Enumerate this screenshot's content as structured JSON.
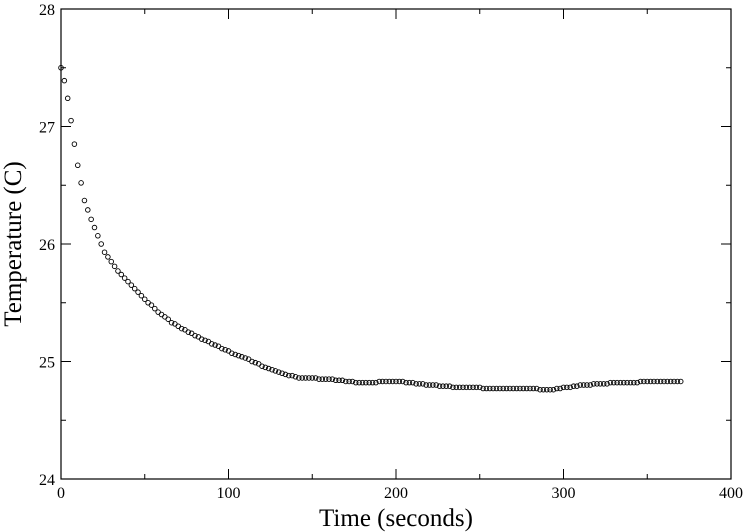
{
  "chart_data": {
    "type": "scatter",
    "x_label": "Time (seconds)",
    "y_label": "Temperature (C)",
    "xlim": [
      0,
      400
    ],
    "xticks": [
      0,
      100,
      200,
      300,
      400
    ],
    "ylim": [
      24,
      28
    ],
    "yticks": [
      24,
      25,
      26,
      27,
      28
    ],
    "marker_color": "#000000",
    "x": [
      0,
      2,
      4,
      6,
      8,
      10,
      12,
      14,
      16,
      18,
      20,
      22,
      24,
      26,
      28,
      30,
      32,
      34,
      36,
      38,
      40,
      42,
      44,
      46,
      48,
      50,
      52,
      54,
      56,
      58,
      60,
      62,
      64,
      66,
      68,
      70,
      72,
      74,
      76,
      78,
      80,
      82,
      84,
      86,
      88,
      90,
      92,
      94,
      96,
      98,
      100,
      102,
      104,
      106,
      108,
      110,
      112,
      114,
      116,
      118,
      120,
      122,
      124,
      126,
      128,
      130,
      132,
      134,
      136,
      138,
      140,
      142,
      144,
      146,
      148,
      150,
      152,
      154,
      156,
      158,
      160,
      162,
      164,
      166,
      168,
      170,
      172,
      174,
      176,
      178,
      180,
      182,
      184,
      186,
      188,
      190,
      192,
      194,
      196,
      198,
      200,
      202,
      204,
      206,
      208,
      210,
      212,
      214,
      216,
      218,
      220,
      222,
      224,
      226,
      228,
      230,
      232,
      234,
      236,
      238,
      240,
      242,
      244,
      246,
      248,
      250,
      252,
      254,
      256,
      258,
      260,
      262,
      264,
      266,
      268,
      270,
      272,
      274,
      276,
      278,
      280,
      282,
      284,
      286,
      288,
      290,
      292,
      294,
      296,
      298,
      300,
      302,
      304,
      306,
      308,
      310,
      312,
      314,
      316,
      318,
      320,
      322,
      324,
      326,
      328,
      330,
      332,
      334,
      336,
      338,
      340,
      342,
      344,
      346,
      348,
      350,
      352,
      354,
      356,
      358,
      360,
      362,
      364,
      366,
      368,
      370
    ],
    "values": [
      27.5,
      27.39,
      27.24,
      27.05,
      26.85,
      26.67,
      26.52,
      26.37,
      26.29,
      26.21,
      26.14,
      26.07,
      26.0,
      25.93,
      25.89,
      25.85,
      25.81,
      25.77,
      25.74,
      25.71,
      25.68,
      25.65,
      25.62,
      25.59,
      25.56,
      25.53,
      25.5,
      25.48,
      25.45,
      25.42,
      25.4,
      25.38,
      25.36,
      25.33,
      25.32,
      25.3,
      25.28,
      25.27,
      25.25,
      25.24,
      25.22,
      25.21,
      25.19,
      25.18,
      25.17,
      25.15,
      25.14,
      25.13,
      25.11,
      25.1,
      25.09,
      25.07,
      25.06,
      25.05,
      25.04,
      25.03,
      25.02,
      25.0,
      24.99,
      24.98,
      24.96,
      24.95,
      24.94,
      24.93,
      24.92,
      24.91,
      24.9,
      24.89,
      24.88,
      24.88,
      24.87,
      24.86,
      24.86,
      24.86,
      24.86,
      24.86,
      24.86,
      24.85,
      24.85,
      24.85,
      24.85,
      24.85,
      24.84,
      24.84,
      24.84,
      24.83,
      24.83,
      24.83,
      24.82,
      24.82,
      24.82,
      24.82,
      24.82,
      24.82,
      24.82,
      24.83,
      24.83,
      24.83,
      24.83,
      24.83,
      24.83,
      24.83,
      24.83,
      24.82,
      24.82,
      24.82,
      24.81,
      24.81,
      24.81,
      24.8,
      24.8,
      24.8,
      24.8,
      24.79,
      24.79,
      24.79,
      24.79,
      24.78,
      24.78,
      24.78,
      24.78,
      24.78,
      24.78,
      24.78,
      24.78,
      24.78,
      24.77,
      24.77,
      24.77,
      24.77,
      24.77,
      24.77,
      24.77,
      24.77,
      24.77,
      24.77,
      24.77,
      24.77,
      24.77,
      24.77,
      24.77,
      24.77,
      24.77,
      24.76,
      24.76,
      24.76,
      24.76,
      24.76,
      24.77,
      24.77,
      24.78,
      24.78,
      24.78,
      24.79,
      24.79,
      24.8,
      24.8,
      24.8,
      24.8,
      24.81,
      24.81,
      24.81,
      24.81,
      24.81,
      24.82,
      24.82,
      24.82,
      24.82,
      24.82,
      24.82,
      24.82,
      24.82,
      24.82,
      24.83,
      24.83,
      24.83,
      24.83,
      24.83,
      24.83,
      24.83,
      24.83,
      24.83,
      24.83,
      24.83,
      24.83,
      24.83
    ]
  }
}
